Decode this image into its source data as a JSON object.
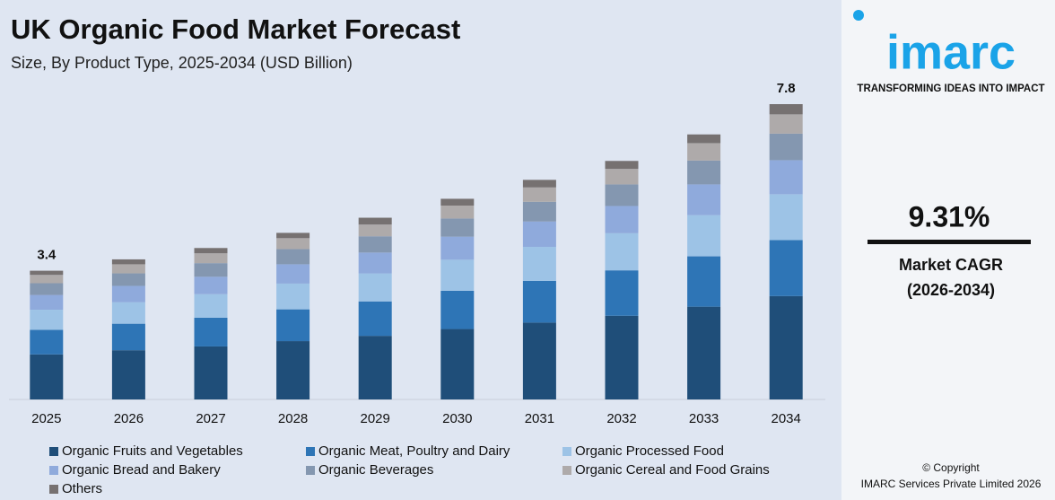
{
  "chart_data": {
    "type": "stacked-bar",
    "title": "UK Organic Food Market Forecast",
    "subtitle": "Size, By Product Type, 2025-2034 (USD Billion)",
    "categories": [
      "2025",
      "2026",
      "2027",
      "2028",
      "2029",
      "2030",
      "2031",
      "2032",
      "2033",
      "2034"
    ],
    "series": [
      {
        "name": "Organic Fruits and Vegetables",
        "color": "#1f4e79",
        "values": [
          1.19,
          1.3,
          1.4,
          1.54,
          1.68,
          1.86,
          2.03,
          2.21,
          2.45,
          2.73
        ]
      },
      {
        "name": "Organic Meat, Poultry and Dairy",
        "color": "#2e75b6",
        "values": [
          0.65,
          0.7,
          0.76,
          0.84,
          0.91,
          1.01,
          1.1,
          1.2,
          1.33,
          1.48
        ]
      },
      {
        "name": "Organic Processed Food",
        "color": "#9dc3e6",
        "values": [
          0.53,
          0.57,
          0.62,
          0.68,
          0.74,
          0.82,
          0.9,
          0.98,
          1.09,
          1.21
        ]
      },
      {
        "name": "Organic Bread and Bakery",
        "color": "#8faadc",
        "values": [
          0.39,
          0.43,
          0.46,
          0.51,
          0.55,
          0.61,
          0.67,
          0.72,
          0.81,
          0.9
        ]
      },
      {
        "name": "Organic Beverages",
        "color": "#8497b0",
        "values": [
          0.31,
          0.33,
          0.36,
          0.4,
          0.43,
          0.48,
          0.52,
          0.57,
          0.63,
          0.7
        ]
      },
      {
        "name": "Organic Cereal and Food Grains",
        "color": "#aeaaaa",
        "values": [
          0.22,
          0.24,
          0.26,
          0.29,
          0.31,
          0.34,
          0.38,
          0.41,
          0.46,
          0.51
        ]
      },
      {
        "name": "Others",
        "color": "#767171",
        "values": [
          0.11,
          0.13,
          0.14,
          0.14,
          0.18,
          0.18,
          0.2,
          0.21,
          0.23,
          0.27
        ]
      }
    ],
    "total_labels": [
      3.4,
      null,
      null,
      null,
      null,
      null,
      null,
      null,
      null,
      7.8
    ]
  },
  "sidebar": {
    "logo": "imarc",
    "tagline": "TRANSFORMING IDEAS INTO IMPACT",
    "cagr": "9.31%",
    "cagr_label": "Market CAGR",
    "cagr_period": "(2026-2034)",
    "copyright": "© Copyright",
    "company": "IMARC Services Private Limited 2026"
  }
}
